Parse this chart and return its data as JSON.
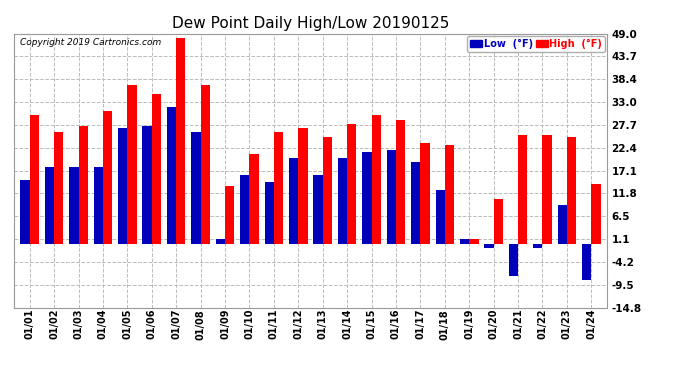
{
  "title": "Dew Point Daily High/Low 20190125",
  "copyright": "Copyright 2019 Cartronics.com",
  "dates": [
    "01/01",
    "01/02",
    "01/03",
    "01/04",
    "01/05",
    "01/06",
    "01/07",
    "01/08",
    "01/09",
    "01/10",
    "01/11",
    "01/12",
    "01/13",
    "01/14",
    "01/15",
    "01/16",
    "01/17",
    "01/18",
    "01/19",
    "01/20",
    "01/21",
    "01/22",
    "01/23",
    "01/24"
  ],
  "high_values": [
    30.0,
    26.0,
    27.5,
    31.0,
    37.0,
    35.0,
    48.0,
    37.0,
    13.5,
    21.0,
    26.0,
    27.0,
    25.0,
    28.0,
    30.0,
    29.0,
    23.5,
    23.0,
    1.1,
    10.5,
    25.5,
    25.5,
    25.0,
    14.0
  ],
  "low_values": [
    15.0,
    18.0,
    18.0,
    18.0,
    27.0,
    27.5,
    32.0,
    26.0,
    1.1,
    16.0,
    14.5,
    20.0,
    16.0,
    20.0,
    21.5,
    22.0,
    19.0,
    12.5,
    1.1,
    -1.0,
    -7.5,
    -1.0,
    9.0,
    -8.5
  ],
  "ylim": [
    -14.8,
    49.0
  ],
  "yticks": [
    -14.8,
    -9.5,
    -4.2,
    1.1,
    6.5,
    11.8,
    17.1,
    22.4,
    27.7,
    33.0,
    38.4,
    43.7,
    49.0
  ],
  "bar_color_high": "#FF0000",
  "bar_color_low": "#0000BB",
  "bg_color": "#FFFFFF",
  "grid_color": "#BBBBBB",
  "title_fontsize": 11,
  "legend_label_low": "Low  (°F)",
  "legend_label_high": "High  (°F)",
  "fig_width": 6.9,
  "fig_height": 3.75,
  "bar_width": 0.38
}
